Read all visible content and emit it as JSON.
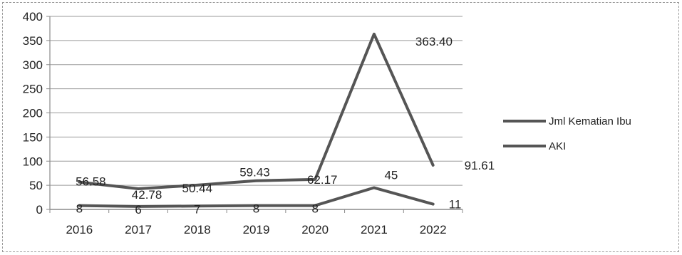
{
  "chart_data": {
    "type": "line",
    "categories": [
      "2016",
      "2017",
      "2018",
      "2019",
      "2020",
      "2021",
      "2022"
    ],
    "ylim": [
      0,
      400
    ],
    "yticks": [
      0,
      50,
      100,
      150,
      200,
      250,
      300,
      350,
      400
    ],
    "grid": true,
    "legend_position": "right",
    "series": [
      {
        "name": "Jml Kematian Ibu",
        "values": [
          8,
          6,
          7,
          8,
          8,
          45,
          11
        ],
        "labels": [
          "8",
          "6",
          "7",
          "8",
          "8",
          "45",
          "11"
        ],
        "color": "#555555"
      },
      {
        "name": "AKI",
        "values": [
          56.58,
          42.78,
          50.44,
          59.43,
          62.17,
          363.4,
          91.61
        ],
        "labels": [
          "56.58",
          "42.78",
          "50.44",
          "59.43",
          "62.17",
          "363.40",
          "91.61"
        ],
        "color": "#555555"
      }
    ]
  }
}
